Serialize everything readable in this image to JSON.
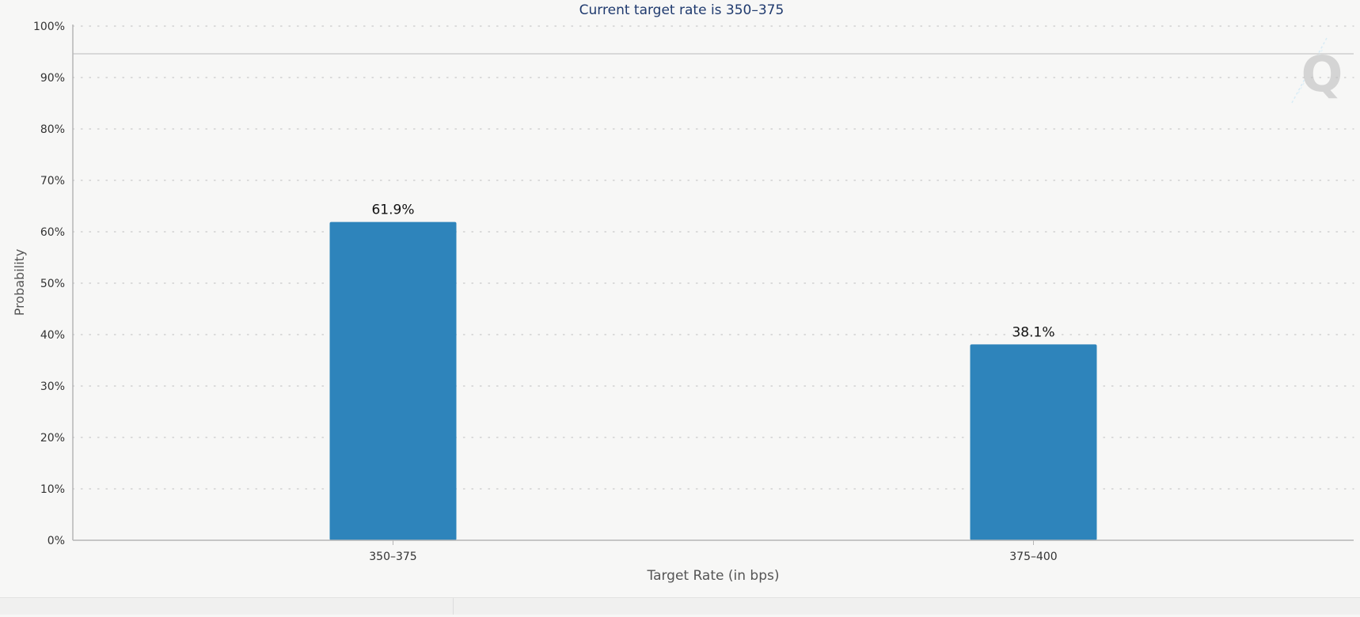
{
  "chart_data": {
    "type": "bar",
    "title": "Current target rate is 350–375",
    "xlabel": "Target Rate (in bps)",
    "ylabel": "Probability",
    "categories": [
      "350–375",
      "375–400"
    ],
    "values": [
      61.9,
      38.1
    ],
    "data_labels": [
      "61.9%",
      "38.1%"
    ],
    "ylim": [
      0,
      100
    ],
    "yticks": [
      "0%",
      "10%",
      "20%",
      "30%",
      "40%",
      "50%",
      "60%",
      "70%",
      "80%",
      "90%",
      "100%"
    ],
    "grid": true,
    "legend": "none",
    "bar_color": "#2e84bb",
    "title_color": "#1f3a6e"
  },
  "watermark": {
    "icon": "q-logo-icon",
    "text": "Q"
  }
}
